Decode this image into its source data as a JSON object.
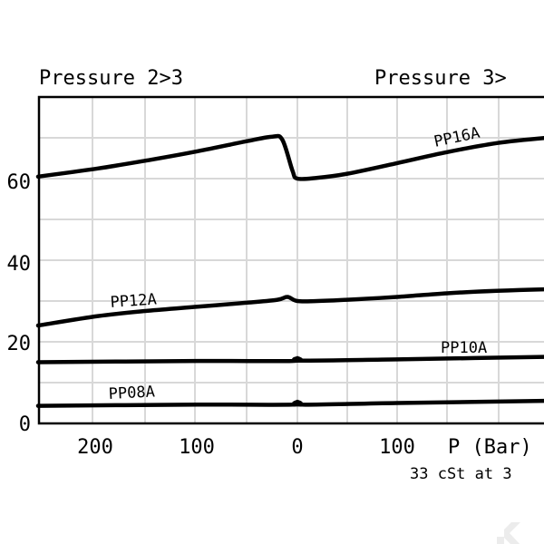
{
  "chart_data": {
    "type": "line",
    "left_title": "Pressure 2>3",
    "right_title": "Pressure 3>",
    "x_axis_label": "P (Bar)",
    "note": "33 cSt at 3",
    "x_tick_labels": [
      "200",
      "100",
      "0",
      "100"
    ],
    "y_tick_labels": [
      "0",
      "20",
      "40",
      "60"
    ],
    "xlim": [
      -260,
      270
    ],
    "ylim": [
      0,
      80
    ],
    "grid": true,
    "series": [
      {
        "name": "PP16A",
        "x": [
          -260,
          -200,
          -150,
          -100,
          -50,
          -25,
          -15,
          -5,
          0,
          20,
          50,
          100,
          150,
          200,
          250,
          270
        ],
        "y": [
          60.5,
          62.5,
          64.5,
          66.7,
          69.2,
          70.3,
          69.5,
          62,
          60,
          60.2,
          61.2,
          63.8,
          66.5,
          68.7,
          70,
          70.2
        ]
      },
      {
        "name": "PP12A",
        "x": [
          -260,
          -200,
          -150,
          -100,
          -50,
          -20,
          -10,
          0,
          20,
          50,
          100,
          150,
          200,
          250,
          270
        ],
        "y": [
          24,
          26.3,
          27.6,
          28.6,
          29.6,
          30.3,
          31,
          30,
          30,
          30.3,
          31,
          31.9,
          32.5,
          32.9,
          33
        ]
      },
      {
        "name": "PP10A",
        "x": [
          -260,
          -100,
          -5,
          0,
          5,
          100,
          270
        ],
        "y": [
          15,
          15.3,
          15.3,
          16,
          15.4,
          15.7,
          16.4
        ]
      },
      {
        "name": "PP08A",
        "x": [
          -260,
          -100,
          -5,
          0,
          5,
          100,
          270
        ],
        "y": [
          4.3,
          4.6,
          4.6,
          5.3,
          4.6,
          5,
          5.6
        ]
      }
    ]
  }
}
